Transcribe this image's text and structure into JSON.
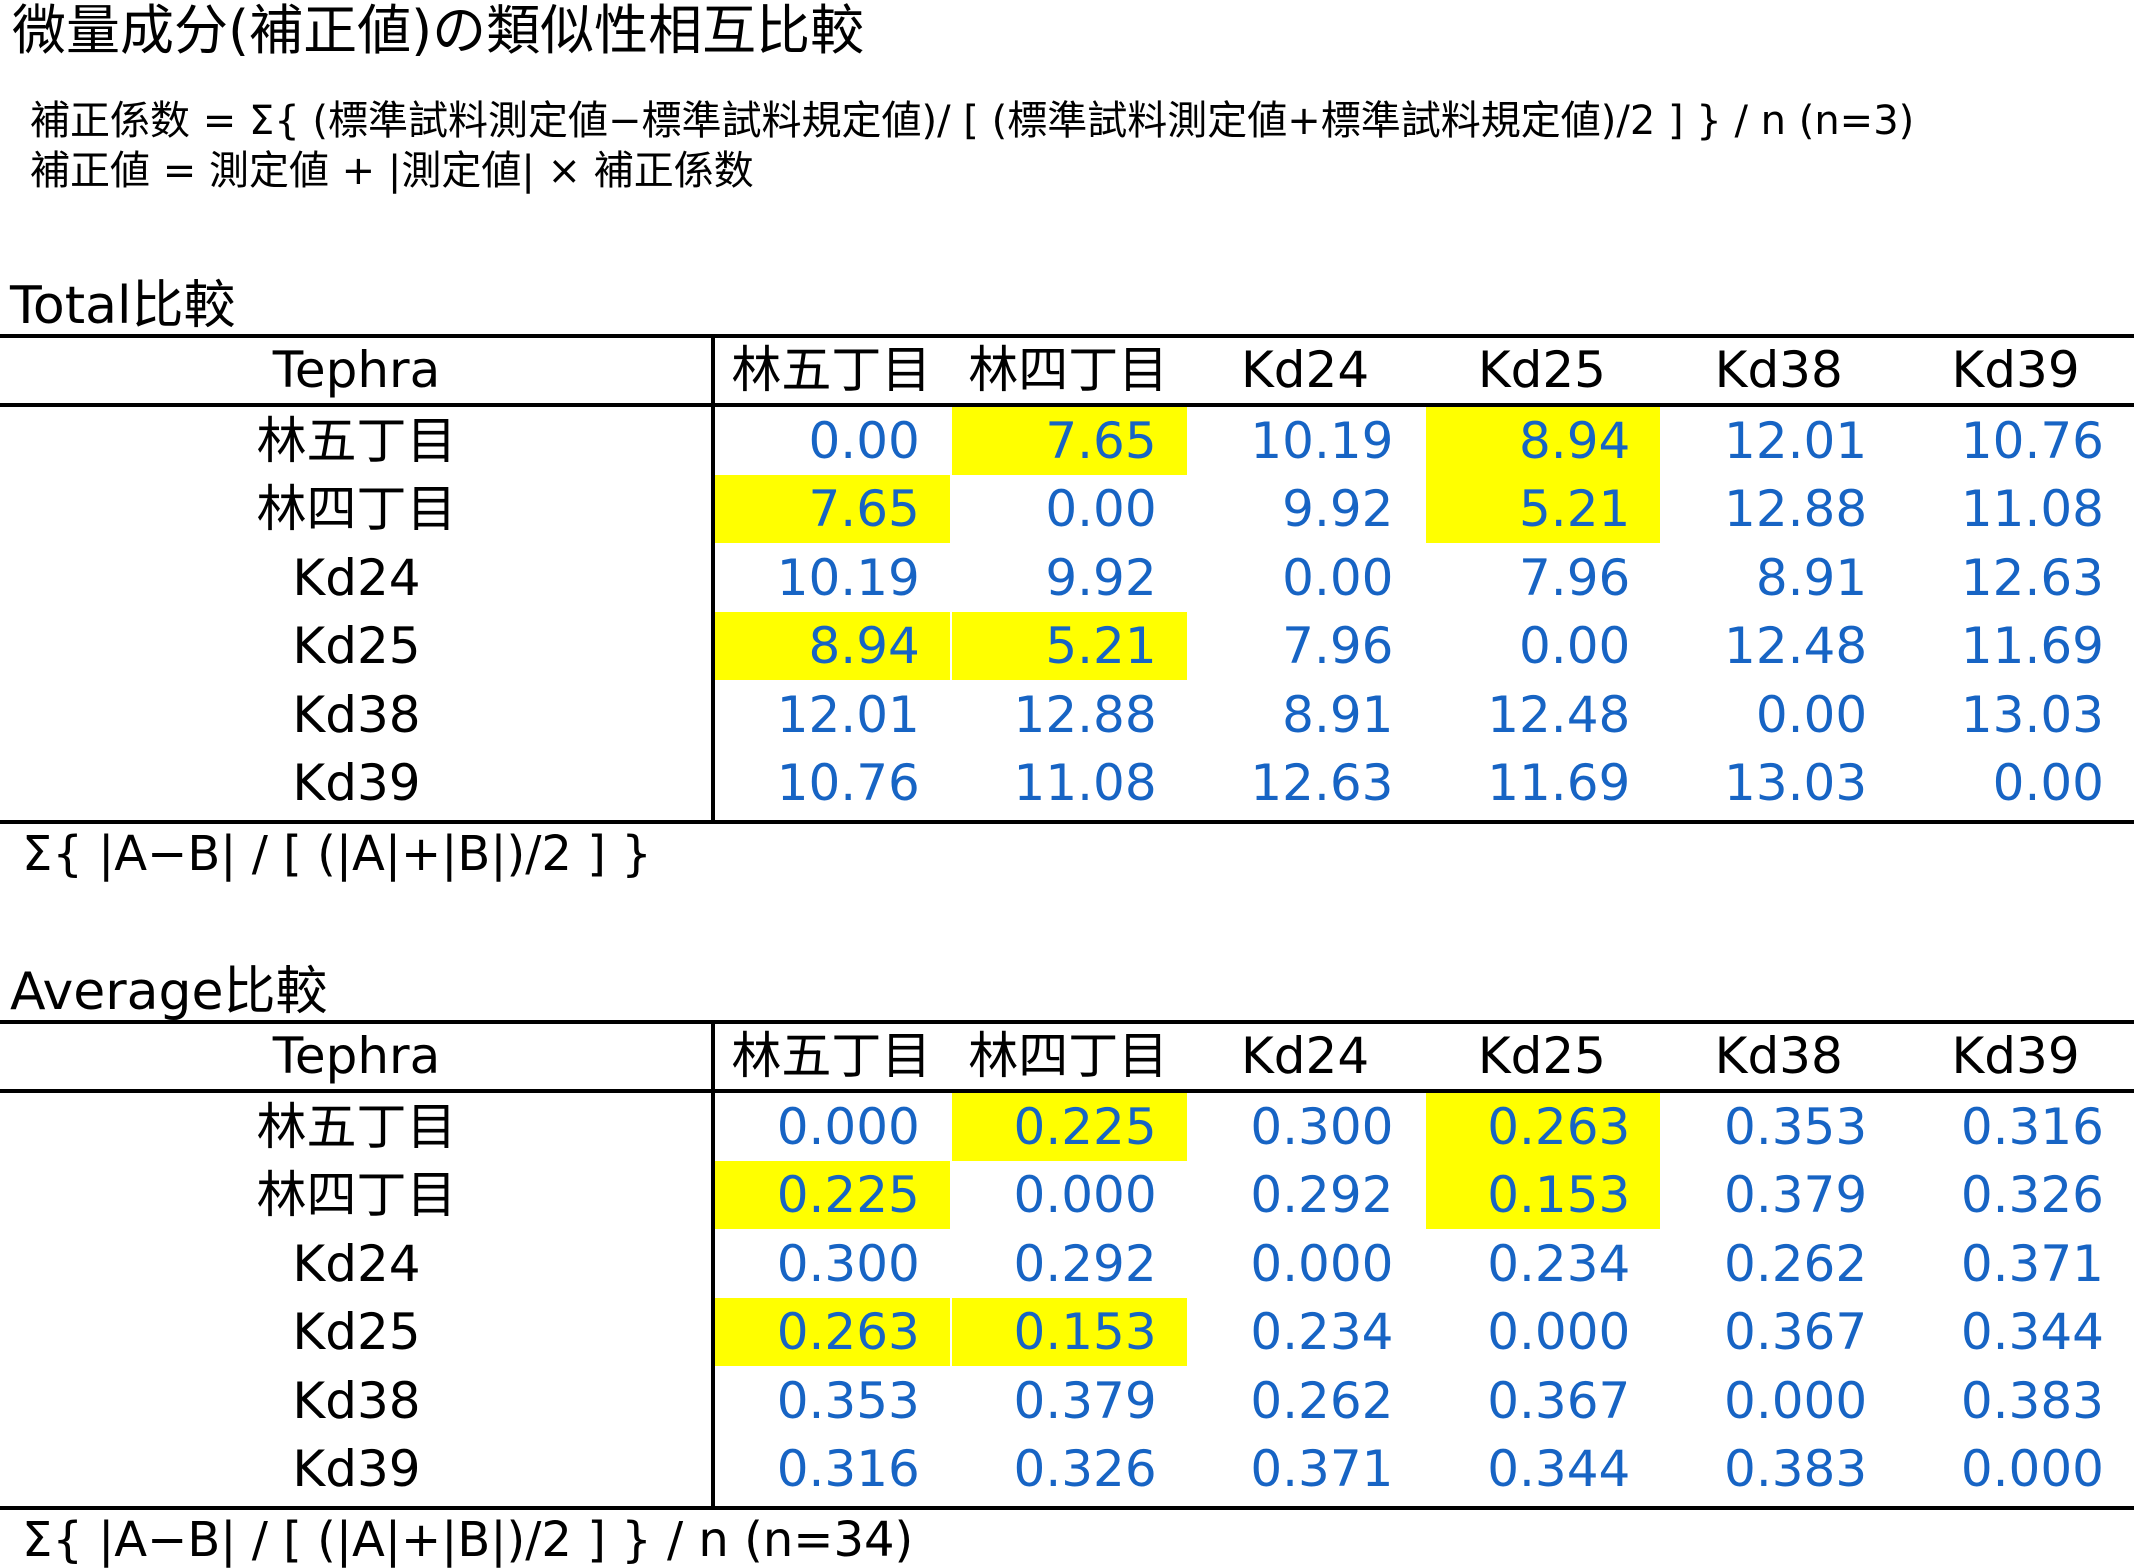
{
  "title": "微量成分(補正値)の類似性相互比較",
  "formula_lines": [
    "補正係数 = Σ{ (標準試料測定値−標準試料規定値)/ [ (標準試料測定値+標準試料規定値)/2 ] } / n (n=3)",
    "補正値 = 測定値 + |測定値| × 補正係数"
  ],
  "tables": [
    {
      "label": "Total比較",
      "header": [
        "Tephra",
        "林五丁目",
        "林四丁目",
        "Kd24",
        "Kd25",
        "Kd38",
        "Kd39"
      ],
      "rows": [
        [
          "林五丁目",
          "0.00",
          "7.65",
          "10.19",
          "8.94",
          "12.01",
          "10.76"
        ],
        [
          "林四丁目",
          "7.65",
          "0.00",
          "9.92",
          "5.21",
          "12.88",
          "11.08"
        ],
        [
          "Kd24",
          "10.19",
          "9.92",
          "0.00",
          "7.96",
          "8.91",
          "12.63"
        ],
        [
          "Kd25",
          "8.94",
          "5.21",
          "7.96",
          "0.00",
          "12.48",
          "11.69"
        ],
        [
          "Kd38",
          "12.01",
          "12.88",
          "8.91",
          "12.48",
          "0.00",
          "13.03"
        ],
        [
          "Kd39",
          "10.76",
          "11.08",
          "12.63",
          "11.69",
          "13.03",
          "0.00"
        ]
      ],
      "note": "Σ{ |A−B| / [ (|A|+|B|)/2 ] }"
    },
    {
      "label": "Average比較",
      "header": [
        "Tephra",
        "林五丁目",
        "林四丁目",
        "Kd24",
        "Kd25",
        "Kd38",
        "Kd39"
      ],
      "rows": [
        [
          "林五丁目",
          "0.000",
          "0.225",
          "0.300",
          "0.263",
          "0.353",
          "0.316"
        ],
        [
          "林四丁目",
          "0.225",
          "0.000",
          "0.292",
          "0.153",
          "0.379",
          "0.326"
        ],
        [
          "Kd24",
          "0.300",
          "0.292",
          "0.000",
          "0.234",
          "0.262",
          "0.371"
        ],
        [
          "Kd25",
          "0.263",
          "0.153",
          "0.234",
          "0.000",
          "0.367",
          "0.344"
        ],
        [
          "Kd38",
          "0.353",
          "0.379",
          "0.262",
          "0.367",
          "0.000",
          "0.383"
        ],
        [
          "Kd39",
          "0.316",
          "0.326",
          "0.371",
          "0.344",
          "0.383",
          "0.000"
        ]
      ],
      "note": "Σ{ |A−B| / [ (|A|+|B|)/2 ] } / n (n=34)"
    }
  ]
}
